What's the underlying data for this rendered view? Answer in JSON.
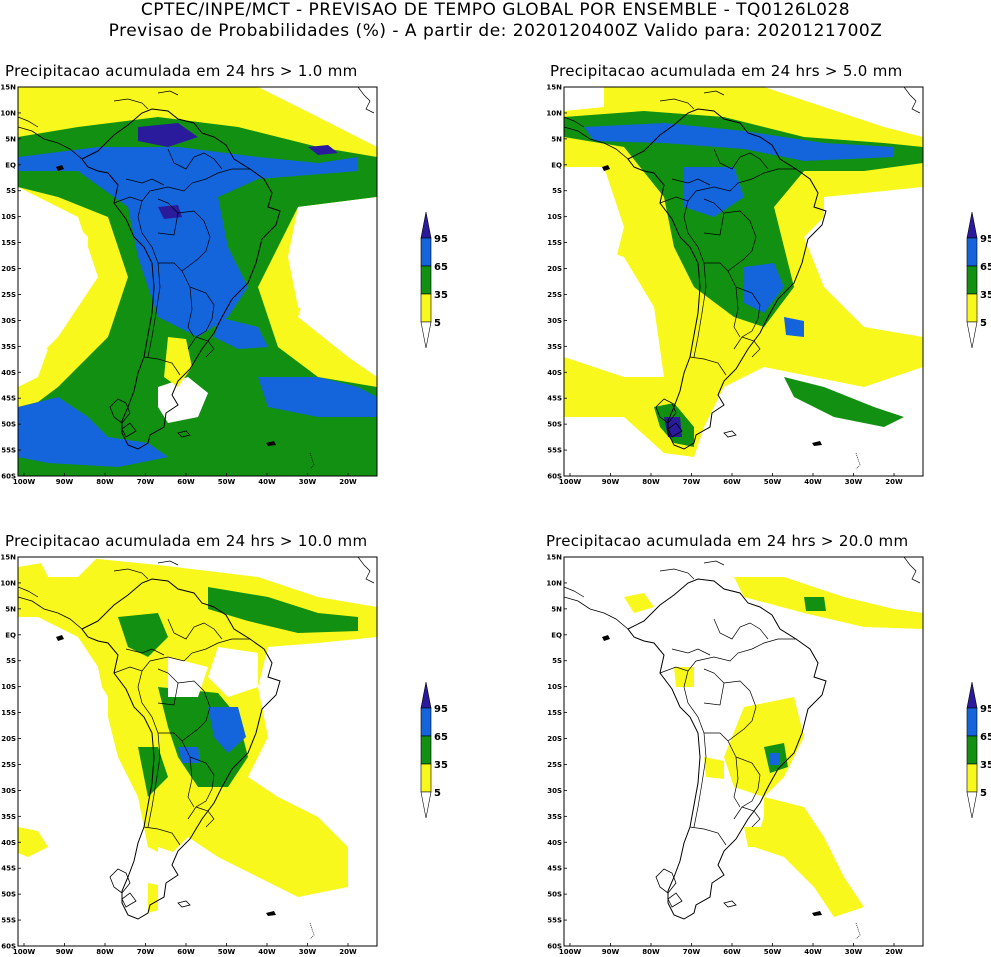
{
  "header": {
    "line1": "CPTEC/INPE/MCT - PREVISAO DE TEMPO GLOBAL POR ENSEMBLE - TQ0126L028",
    "line2": "Previsao de Probabilidades (%) -  A partir de: 2020120400Z  Valido para: 2020121700Z"
  },
  "panels": [
    {
      "title": "Precipitacao acumulada em 24 hrs > 1.0 mm"
    },
    {
      "title": "Precipitacao acumulada em 24 hrs > 5.0 mm"
    },
    {
      "title": "Precipitacao acumulada em 24 hrs > 10.0 mm"
    },
    {
      "title": "Precipitacao acumulada em 24 hrs > 20.0 mm"
    }
  ],
  "axes": {
    "lat_labels": [
      "15N",
      "10N",
      "5N",
      "EQ",
      "5S",
      "10S",
      "15S",
      "20S",
      "25S",
      "30S",
      "35S",
      "40S",
      "45S",
      "50S",
      "55S",
      "60S"
    ],
    "lon_labels": [
      "100W",
      "90W",
      "80W",
      "70W",
      "60W",
      "50W",
      "40W",
      "30W",
      "20W"
    ]
  },
  "legend": {
    "labels": [
      "95",
      "65",
      "35",
      "5"
    ],
    "colors": [
      "#2a1a9c",
      "#1464dc",
      "#129012",
      "#f8f81c",
      "#ffffff"
    ]
  }
}
